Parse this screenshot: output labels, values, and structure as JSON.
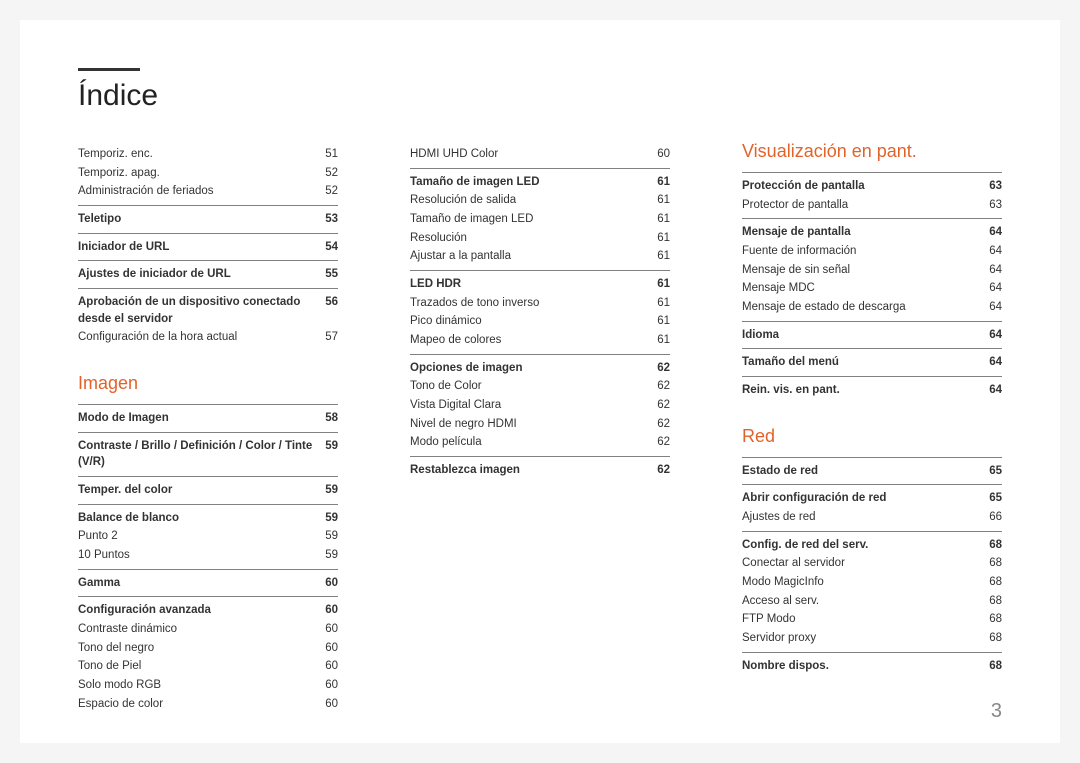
{
  "title": "Índice",
  "page_number": "3",
  "colors": {
    "accent": "#e2632a",
    "text": "#333333",
    "title_bar": "#333333",
    "divider": "#808080",
    "page_num": "#888888",
    "background": "#ffffff"
  },
  "columns": [
    {
      "sections": [
        {
          "heading": null,
          "groups": [
            {
              "no_border": true,
              "rows": [
                {
                  "label": "Temporiz. enc.",
                  "page": "51",
                  "bold": false
                },
                {
                  "label": "Temporiz. apag.",
                  "page": "52",
                  "bold": false
                },
                {
                  "label": "Administración de feriados",
                  "page": "52",
                  "bold": false
                }
              ]
            },
            {
              "rows": [
                {
                  "label": "Teletipo",
                  "page": "53",
                  "bold": true
                }
              ]
            },
            {
              "rows": [
                {
                  "label": "Iniciador de URL",
                  "page": "54",
                  "bold": true
                }
              ]
            },
            {
              "rows": [
                {
                  "label": "Ajustes de iniciador de URL",
                  "page": "55",
                  "bold": true
                }
              ]
            },
            {
              "rows": [
                {
                  "label": "Aprobación de un dispositivo conectado desde el servidor",
                  "page": "56",
                  "bold": true
                },
                {
                  "label": "Configuración de la hora actual",
                  "page": "57",
                  "bold": false
                }
              ]
            }
          ]
        },
        {
          "heading": "Imagen",
          "groups": [
            {
              "rows": [
                {
                  "label": "Modo de Imagen",
                  "page": "58",
                  "bold": true
                }
              ]
            },
            {
              "rows": [
                {
                  "label": "Contraste / Brillo / Definición / Color / Tinte (V/R)",
                  "page": "59",
                  "bold": true
                }
              ]
            },
            {
              "rows": [
                {
                  "label": "Temper. del color",
                  "page": "59",
                  "bold": true
                }
              ]
            },
            {
              "rows": [
                {
                  "label": "Balance de blanco",
                  "page": "59",
                  "bold": true
                },
                {
                  "label": "Punto 2",
                  "page": "59",
                  "bold": false
                },
                {
                  "label": "10 Puntos",
                  "page": "59",
                  "bold": false
                }
              ]
            },
            {
              "rows": [
                {
                  "label": "Gamma",
                  "page": "60",
                  "bold": true
                }
              ]
            },
            {
              "rows": [
                {
                  "label": "Configuración avanzada",
                  "page": "60",
                  "bold": true
                },
                {
                  "label": "Contraste dinámico",
                  "page": "60",
                  "bold": false
                },
                {
                  "label": "Tono del negro",
                  "page": "60",
                  "bold": false
                },
                {
                  "label": "Tono de Piel",
                  "page": "60",
                  "bold": false
                },
                {
                  "label": "Solo modo RGB",
                  "page": "60",
                  "bold": false
                },
                {
                  "label": "Espacio de color",
                  "page": "60",
                  "bold": false
                }
              ]
            }
          ]
        }
      ]
    },
    {
      "sections": [
        {
          "heading": null,
          "groups": [
            {
              "no_border": true,
              "rows": [
                {
                  "label": "HDMI UHD Color",
                  "page": "60",
                  "bold": false
                }
              ]
            },
            {
              "rows": [
                {
                  "label": "Tamaño de imagen LED",
                  "page": "61",
                  "bold": true
                },
                {
                  "label": "Resolución de salida",
                  "page": "61",
                  "bold": false
                },
                {
                  "label": "Tamaño de imagen LED",
                  "page": "61",
                  "bold": false
                },
                {
                  "label": "Resolución",
                  "page": "61",
                  "bold": false
                },
                {
                  "label": "Ajustar a la pantalla",
                  "page": "61",
                  "bold": false
                }
              ]
            },
            {
              "rows": [
                {
                  "label": "LED HDR",
                  "page": "61",
                  "bold": true
                },
                {
                  "label": "Trazados de tono inverso",
                  "page": "61",
                  "bold": false
                },
                {
                  "label": "Pico dinámico",
                  "page": "61",
                  "bold": false
                },
                {
                  "label": "Mapeo de colores",
                  "page": "61",
                  "bold": false
                }
              ]
            },
            {
              "rows": [
                {
                  "label": "Opciones de imagen",
                  "page": "62",
                  "bold": true
                },
                {
                  "label": "Tono de Color",
                  "page": "62",
                  "bold": false
                },
                {
                  "label": "Vista Digital Clara",
                  "page": "62",
                  "bold": false
                },
                {
                  "label": "Nivel de negro HDMI",
                  "page": "62",
                  "bold": false
                },
                {
                  "label": "Modo película",
                  "page": "62",
                  "bold": false
                }
              ]
            },
            {
              "rows": [
                {
                  "label": "Restablezca imagen",
                  "page": "62",
                  "bold": true
                }
              ]
            }
          ]
        }
      ]
    },
    {
      "sections": [
        {
          "heading": "Visualización en pant.",
          "heading_mt0": true,
          "groups": [
            {
              "rows": [
                {
                  "label": "Protección de pantalla",
                  "page": "63",
                  "bold": true
                },
                {
                  "label": "Protector de pantalla",
                  "page": "63",
                  "bold": false
                }
              ]
            },
            {
              "rows": [
                {
                  "label": "Mensaje de pantalla",
                  "page": "64",
                  "bold": true
                },
                {
                  "label": "Fuente de información",
                  "page": "64",
                  "bold": false
                },
                {
                  "label": "Mensaje de sin señal",
                  "page": "64",
                  "bold": false
                },
                {
                  "label": "Mensaje MDC",
                  "page": "64",
                  "bold": false
                },
                {
                  "label": "Mensaje de estado de descarga",
                  "page": "64",
                  "bold": false
                }
              ]
            },
            {
              "rows": [
                {
                  "label": "Idioma",
                  "page": "64",
                  "bold": true
                }
              ]
            },
            {
              "rows": [
                {
                  "label": "Tamaño del menú",
                  "page": "64",
                  "bold": true
                }
              ]
            },
            {
              "rows": [
                {
                  "label": "Rein. vis. en pant.",
                  "page": "64",
                  "bold": true
                }
              ]
            }
          ]
        },
        {
          "heading": "Red",
          "groups": [
            {
              "rows": [
                {
                  "label": "Estado de red",
                  "page": "65",
                  "bold": true
                }
              ]
            },
            {
              "rows": [
                {
                  "label": "Abrir configuración de red",
                  "page": "65",
                  "bold": true
                },
                {
                  "label": "Ajustes de red",
                  "page": "66",
                  "bold": false
                }
              ]
            },
            {
              "rows": [
                {
                  "label": "Config. de red del serv.",
                  "page": "68",
                  "bold": true
                },
                {
                  "label": "Conectar al servidor",
                  "page": "68",
                  "bold": false
                },
                {
                  "label": "Modo MagicInfo",
                  "page": "68",
                  "bold": false
                },
                {
                  "label": "Acceso al serv.",
                  "page": "68",
                  "bold": false
                },
                {
                  "label": "FTP Modo",
                  "page": "68",
                  "bold": false
                },
                {
                  "label": "Servidor proxy",
                  "page": "68",
                  "bold": false
                }
              ]
            },
            {
              "rows": [
                {
                  "label": "Nombre dispos.",
                  "page": "68",
                  "bold": true
                }
              ]
            }
          ]
        }
      ]
    }
  ]
}
